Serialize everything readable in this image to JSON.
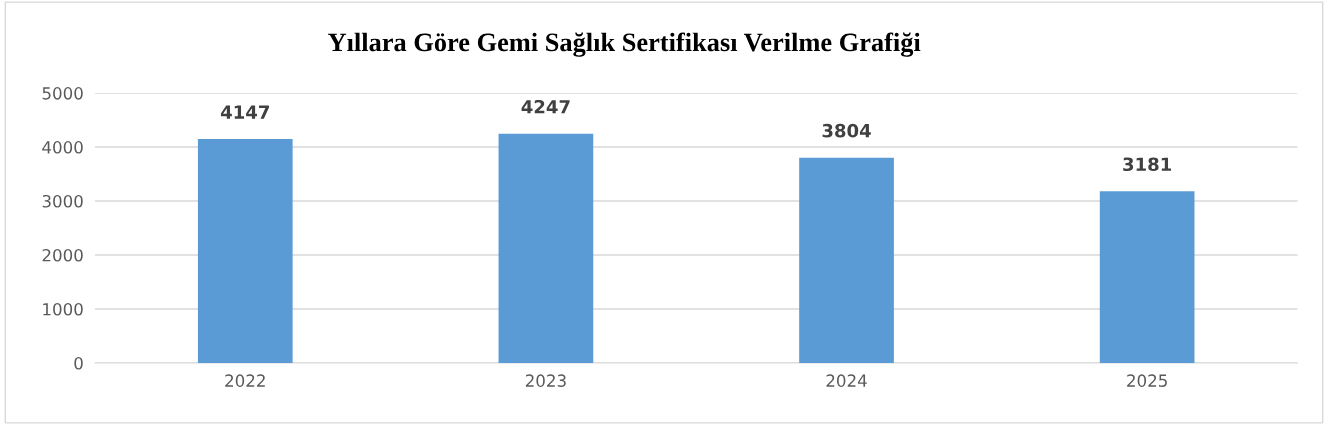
{
  "chart_data": {
    "type": "bar",
    "title": "Yıllara Göre Gemi Sağlık Sertifikası Verilme Grafiği",
    "categories": [
      "2022",
      "2023",
      "2024",
      "2025"
    ],
    "values": [
      4147,
      4247,
      3804,
      3181
    ],
    "color": "#5b9bd5",
    "ylim": [
      0,
      5000
    ],
    "yticks": [
      0,
      1000,
      2000,
      3000,
      4000,
      5000
    ],
    "grid": "y",
    "data_labels": true
  }
}
